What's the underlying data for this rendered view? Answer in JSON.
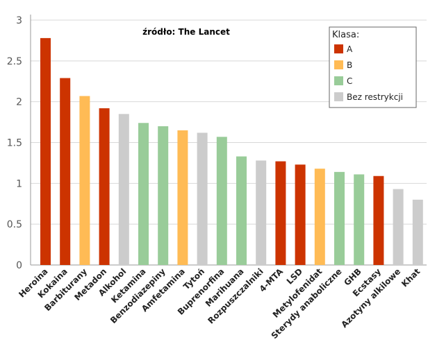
{
  "chart_data": {
    "type": "bar",
    "title": "źródło: The Lancet",
    "ylim": [
      0,
      3
    ],
    "yticks": [
      "0",
      "0.5",
      "1",
      "1.5",
      "2",
      "2.5",
      "3"
    ],
    "ytick_values": [
      0,
      0.5,
      1,
      1.5,
      2,
      2.5,
      3
    ],
    "grid": "horizontal",
    "legend": {
      "title": "Klasa:",
      "placement": "top-right",
      "entries": [
        {
          "key": "A",
          "label": "A",
          "color": "#cc3300"
        },
        {
          "key": "B",
          "label": "B",
          "color": "#ffbb55"
        },
        {
          "key": "C",
          "label": "C",
          "color": "#99cc99"
        },
        {
          "key": "N",
          "label": "Bez restrykcji",
          "color": "#cccccc"
        }
      ]
    },
    "highlight_color": "#339933",
    "categories": [
      "Heroina",
      "Kokaina",
      "Barbiturany",
      "Metadon",
      "Alkohol",
      "Ketamina",
      "Benzodiazepiny",
      "Amfetamina",
      "Tytoń",
      "Buprenorfina",
      "Marihuana",
      "Rozpuszczalniki",
      "4-MTA",
      "LSD",
      "Metylofenidat",
      "Sterydy anaboliczne",
      "GHB",
      "Ecstasy",
      "Azotyny alkilowe",
      "Khat"
    ],
    "values": [
      2.78,
      2.29,
      2.07,
      1.92,
      1.85,
      1.74,
      1.7,
      1.65,
      1.62,
      1.57,
      1.33,
      1.28,
      1.27,
      1.23,
      1.18,
      1.14,
      1.11,
      1.09,
      0.93,
      0.8
    ],
    "classes": [
      "A",
      "A",
      "B",
      "A",
      "N",
      "C",
      "C",
      "B",
      "N",
      "C",
      "C",
      "N",
      "A",
      "A",
      "B",
      "C",
      "C",
      "A",
      "N",
      "N"
    ],
    "highlighted": [
      "Marihuana"
    ]
  }
}
